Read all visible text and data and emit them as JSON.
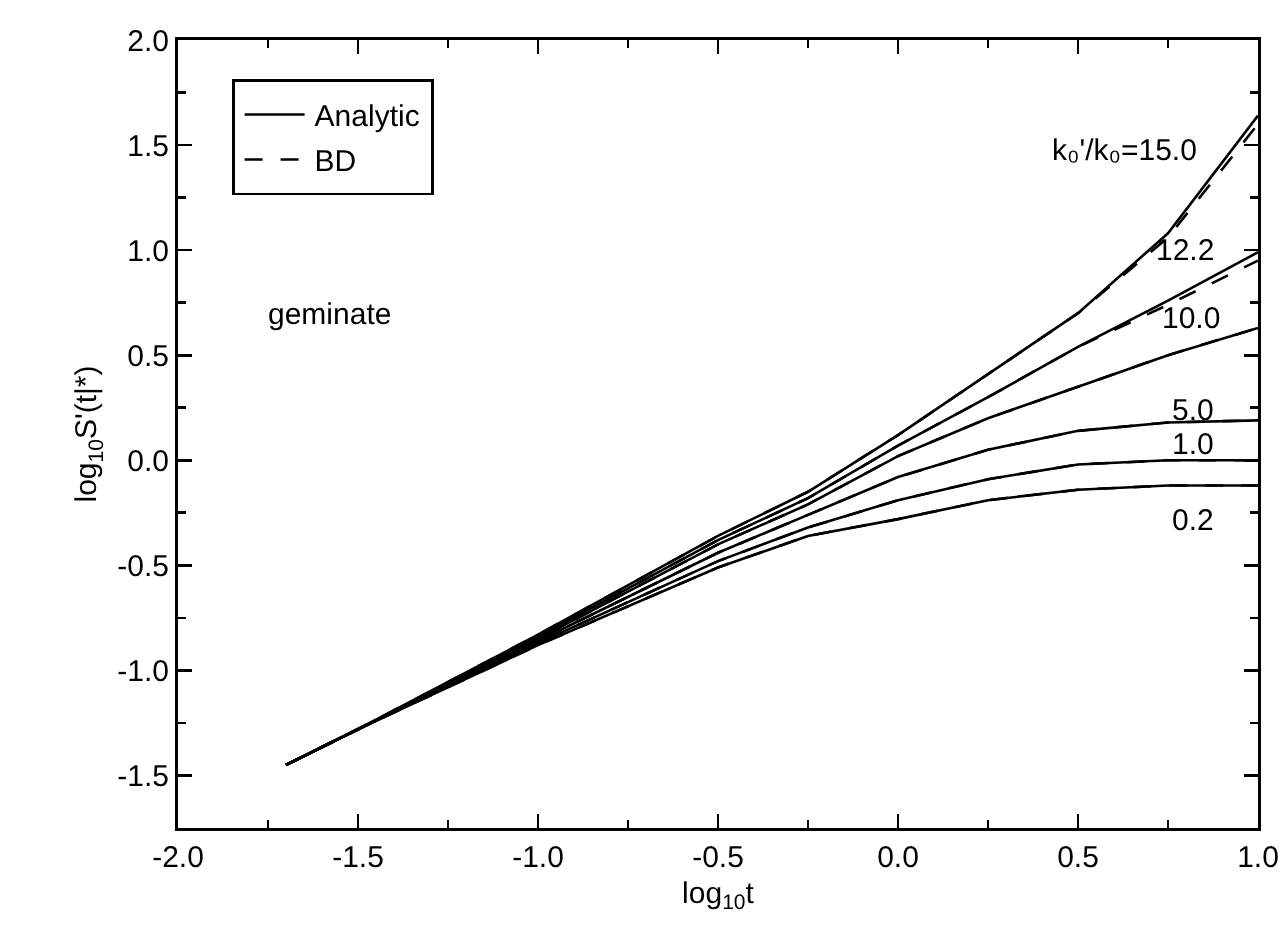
{
  "chart_data": {
    "type": "line",
    "xlabel": "log$_{10}$t",
    "ylabel": "log$_{10}$S'(t|*)",
    "x": [
      -1.7,
      -1.5,
      -1,
      -0.5,
      -0.25,
      0,
      0.25,
      0.5,
      0.75,
      1
    ],
    "series": [
      {
        "name": "Analytic",
        "color": "#000000",
        "line_style": "solid",
        "values": [
          -1.45,
          -1.28,
          -0.83,
          -0.36,
          -0.15,
          0.12,
          0.41,
          0.7,
          1.08,
          1.64
        ]
      },
      {
        "color": "#000000",
        "line_style": "solid",
        "values": [
          -1.45,
          -1.28,
          -0.84,
          -0.38,
          -0.18,
          0.07,
          0.3,
          0.54,
          0.76,
          0.99
        ]
      },
      {
        "color": "#000000",
        "line_style": "solid",
        "values": [
          -1.45,
          -1.28,
          -0.85,
          -0.4,
          -0.21,
          0.02,
          0.2,
          0.35,
          0.5,
          0.63
        ]
      },
      {
        "color": "#000000",
        "line_style": "solid",
        "values": [
          -1.45,
          -1.28,
          -0.86,
          -0.44,
          -0.26,
          -0.08,
          0.05,
          0.14,
          0.18,
          0.19
        ]
      },
      {
        "color": "#000000",
        "line_style": "solid",
        "values": [
          -1.45,
          -1.28,
          -0.87,
          -0.48,
          -0.32,
          -0.19,
          -0.09,
          -0.02,
          0.0,
          0.0
        ]
      },
      {
        "color": "#000000",
        "line_style": "solid",
        "values": [
          -1.45,
          -1.28,
          -0.88,
          -0.51,
          -0.36,
          -0.28,
          -0.19,
          -0.14,
          -0.12,
          -0.12
        ]
      },
      {
        "name": "BD",
        "color": "#000000",
        "line_style": "dashed",
        "values": [
          -1.45,
          -1.28,
          -0.83,
          -0.36,
          -0.15,
          0.12,
          0.41,
          0.7,
          1.06,
          1.6
        ]
      },
      {
        "color": "#000000",
        "line_style": "dashed",
        "values": [
          -1.45,
          -1.28,
          -0.84,
          -0.38,
          -0.18,
          0.07,
          0.3,
          0.54,
          0.74,
          0.95
        ]
      },
      {
        "color": "#000000",
        "line_style": "dashed",
        "values": [
          -1.45,
          -1.28,
          -0.85,
          -0.4,
          -0.21,
          0.02,
          0.2,
          0.35,
          0.5,
          0.63
        ]
      },
      {
        "color": "#000000",
        "line_style": "dashed",
        "values": [
          -1.45,
          -1.28,
          -0.86,
          -0.44,
          -0.26,
          -0.08,
          0.05,
          0.14,
          0.18,
          0.19
        ]
      },
      {
        "color": "#000000",
        "line_style": "dashed",
        "values": [
          -1.45,
          -1.28,
          -0.87,
          -0.48,
          -0.32,
          -0.19,
          -0.09,
          -0.02,
          0.0,
          0.0
        ]
      },
      {
        "color": "#000000",
        "line_style": "dashed",
        "values": [
          -1.45,
          -1.28,
          -0.88,
          -0.51,
          -0.36,
          -0.28,
          -0.19,
          -0.14,
          -0.12,
          -0.12
        ]
      }
    ],
    "annotations": [
      "k₀'/k₀=15.0",
      "12.2",
      "10.0",
      "5.0",
      "1.0",
      "0.2",
      "geminate"
    ],
    "xlim": [
      -2,
      1
    ],
    "xticks": [
      {
        "value": -2,
        "label": "-2.0"
      },
      -1.5,
      {
        "value": -1,
        "label": "-1.0"
      },
      -0.5,
      {
        "value": 0,
        "label": "0.0"
      },
      0.5,
      {
        "value": 1,
        "label": "1.0"
      }
    ],
    "ylim": [
      -1.75,
      2
    ],
    "yticks": [
      -1.5,
      {
        "value": -1,
        "label": "-1.0"
      },
      -0.5,
      {
        "value": 0,
        "label": "0.0"
      },
      0.5,
      {
        "value": 1,
        "label": "1.0"
      },
      1.5,
      {
        "value": 2,
        "label": "2.0"
      }
    ],
    "grid": false,
    "legend": "top left",
    "marker": "none"
  }
}
